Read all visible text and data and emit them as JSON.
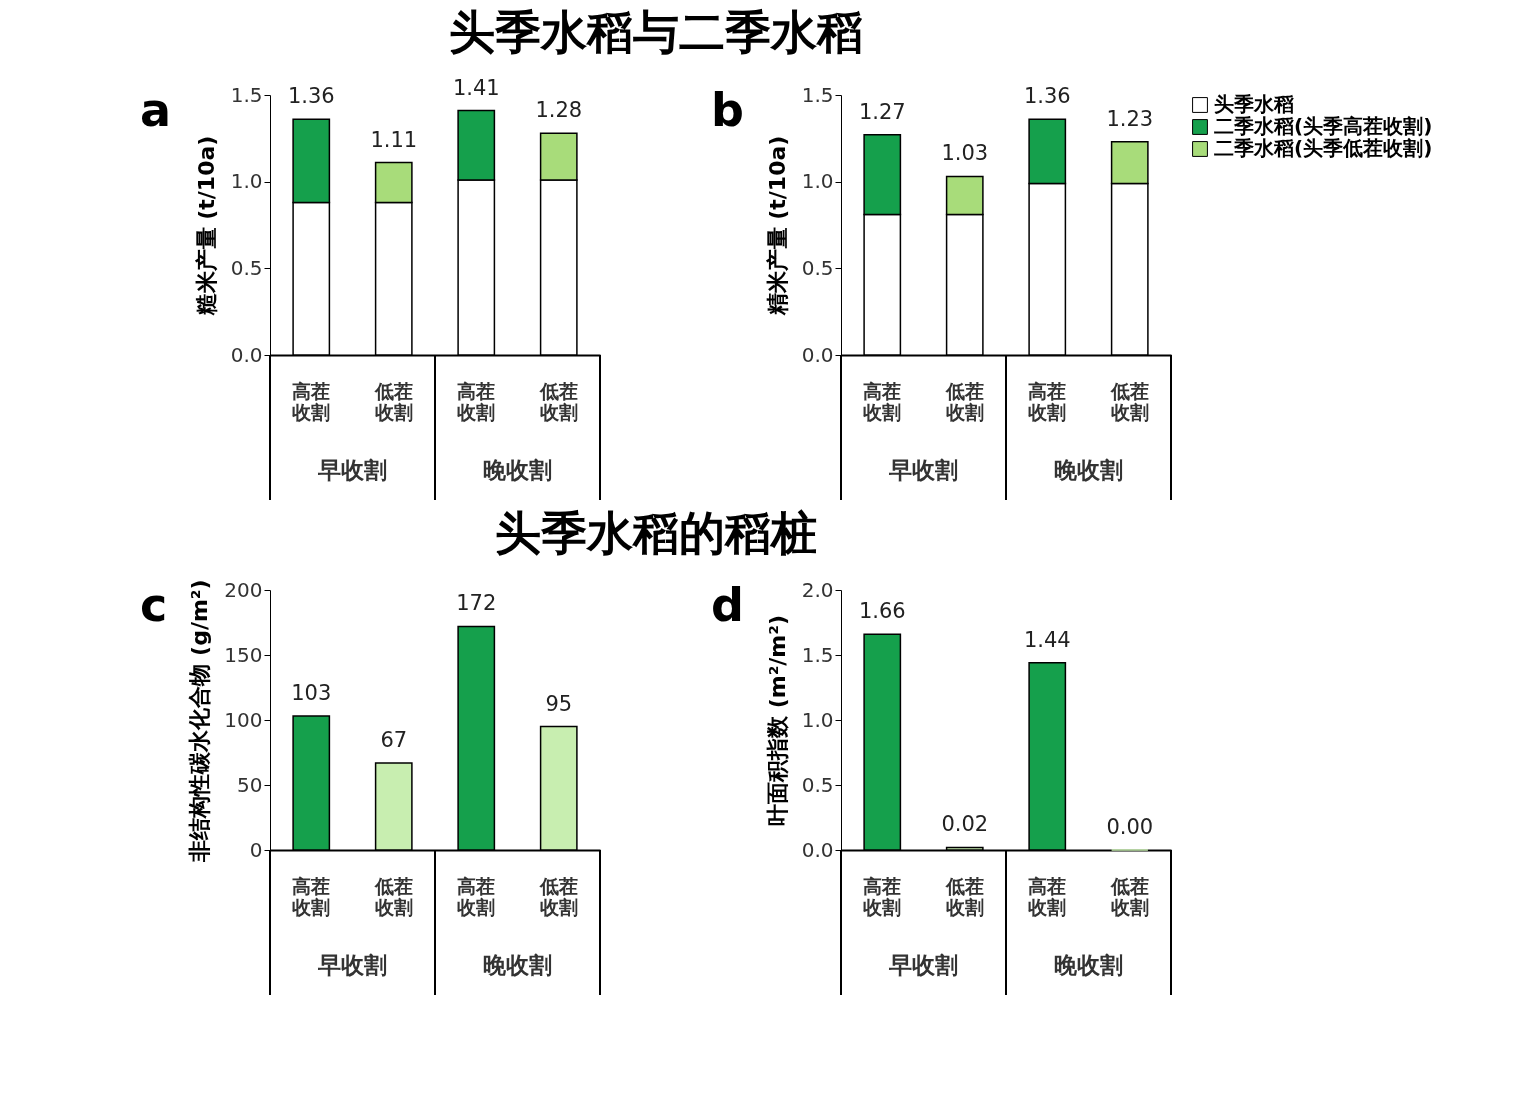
{
  "chart_data": [
    {
      "type": "bar",
      "title": "头季水稻与二季水稻",
      "subtitle": "a",
      "ylabel": "糙米产量 (t/10a)",
      "stacked": true,
      "categories": [
        "高茬收割",
        "低茬收割",
        "高茬收割",
        "低茬收割"
      ],
      "annotations": [
        "早收割",
        "晚收割"
      ],
      "series": [
        {
          "name": "头季水稻",
          "color": "#ffffff",
          "values": [
            0.88,
            0.88,
            1.01,
            1.01
          ]
        },
        {
          "name": "二季水稻(头季高茬收割)",
          "color": "#15a04c",
          "values": [
            0.48,
            null,
            0.4,
            null
          ]
        },
        {
          "name": "二季水稻(头季低茬收割)",
          "color": "#a8dc7a",
          "values": [
            null,
            0.23,
            null,
            0.27
          ]
        }
      ],
      "totals": [
        "1.36",
        "1.11",
        "1.41",
        "1.28"
      ],
      "ylim": [
        0,
        1.5
      ],
      "yticks": [
        {
          "value": 0,
          "label": "0.0"
        },
        0.5,
        {
          "value": 1,
          "label": "1.0"
        },
        1.5
      ],
      "grid": false,
      "legend": "top right"
    },
    {
      "type": "bar",
      "subtitle": "b",
      "ylabel": "精米产量 (t/10a)",
      "stacked": true,
      "categories": [
        "高茬收割",
        "低茬收割",
        "高茬收割",
        "低茬收割"
      ],
      "annotations": [
        "早收割",
        "晚收割"
      ],
      "series": [
        {
          "name": "头季水稻",
          "color": "#ffffff",
          "values": [
            0.81,
            0.81,
            0.99,
            0.99
          ]
        },
        {
          "name": "二季水稻(头季高茬收割)",
          "color": "#15a04c",
          "values": [
            0.46,
            null,
            0.37,
            null
          ]
        },
        {
          "name": "二季水稻(头季低茬收割)",
          "color": "#a8dc7a",
          "values": [
            null,
            0.22,
            null,
            0.24
          ]
        }
      ],
      "totals": [
        "1.27",
        "1.03",
        "1.36",
        "1.23"
      ],
      "ylim": [
        0,
        1.5
      ],
      "yticks": [
        {
          "value": 0,
          "label": "0.0"
        },
        0.5,
        {
          "value": 1,
          "label": "1.0"
        },
        1.5
      ],
      "grid": false,
      "legend": "top right"
    },
    {
      "type": "bar",
      "title": "头季水稻的稻桩",
      "subtitle": "c",
      "ylabel": "非结构性碳水化合物 (g/m²)",
      "categories": [
        "高茬收割",
        "低茬收割",
        "高茬收割",
        "低茬收割"
      ],
      "annotations": [
        "早收割",
        "晚收割"
      ],
      "values": [
        103,
        67,
        172,
        95
      ],
      "colors": [
        "#15a04c",
        "#c8eeb0",
        "#15a04c",
        "#c8eeb0"
      ],
      "value_labels": [
        "103",
        "67",
        "172",
        "95"
      ],
      "ylim": [
        0,
        200
      ],
      "yticks": [
        0,
        50,
        100,
        150,
        200
      ],
      "grid": false
    },
    {
      "type": "bar",
      "subtitle": "d",
      "ylabel": "叶面积指数 (m²/m²)",
      "categories": [
        "高茬收割",
        "低茬收割",
        "高茬收割",
        "低茬收割"
      ],
      "annotations": [
        "早收割",
        "晚收割"
      ],
      "values": [
        1.66,
        0.02,
        1.44,
        0.0
      ],
      "colors": [
        "#15a04c",
        "#c8eeb0",
        "#15a04c",
        "#c8eeb0"
      ],
      "value_labels": [
        "1.66",
        "0.02",
        "1.44",
        "0.00"
      ],
      "ylim": [
        0,
        2.0
      ],
      "yticks": [
        {
          "value": 0,
          "label": "0.0"
        },
        0.5,
        {
          "value": 1,
          "label": "1.0"
        },
        1.5,
        {
          "value": 2,
          "label": "2.0"
        }
      ],
      "grid": false
    }
  ]
}
